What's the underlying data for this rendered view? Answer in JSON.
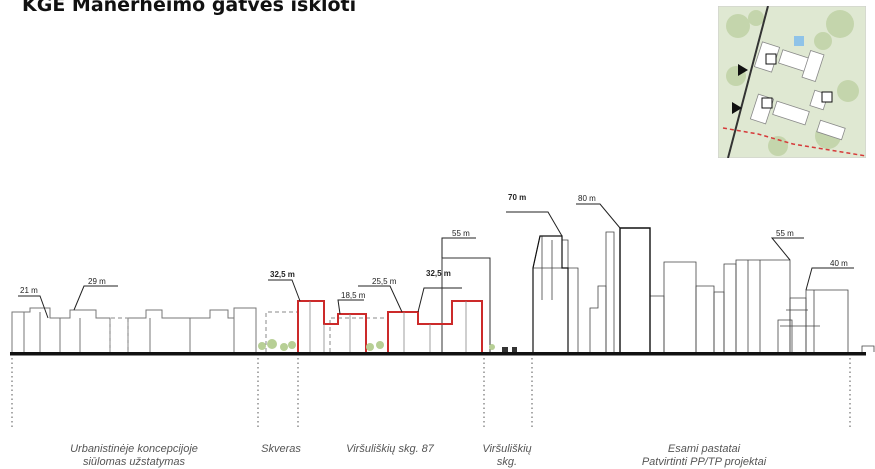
{
  "title": "KGE Manerheimo gatvės iškloti",
  "colors": {
    "proposed": "#cc2a2a",
    "existing": "#222222",
    "ground": "#111111",
    "text_muted": "#555555",
    "map_green": "#c9d8b4",
    "map_path": "#d63a3a"
  },
  "heights": {
    "h21": "21 m",
    "h29": "29 m",
    "h32a": "32,5 m",
    "h18": "18,5 m",
    "h25": "25,5 m",
    "h32b": "32,5 m",
    "h55a": "55 m",
    "h70": "70 m",
    "h80": "80 m",
    "h55b": "55 m",
    "h40": "40 m"
  },
  "zones": {
    "z1_line1": "Urbanistinėje koncepcijoje",
    "z1_line2": "siūlomas užstatymas",
    "z2": "Skveras",
    "z3": "Viršuliškių skg. 87",
    "z4_line1": "Viršuliškių",
    "z4_line2": "skg.",
    "z5_line1": "Esami pastatai",
    "z5_line2": "Patvirtinti PP/TP projektai"
  },
  "icons": {
    "minimap": "site-location-map",
    "arrow": "view-direction-arrow"
  }
}
